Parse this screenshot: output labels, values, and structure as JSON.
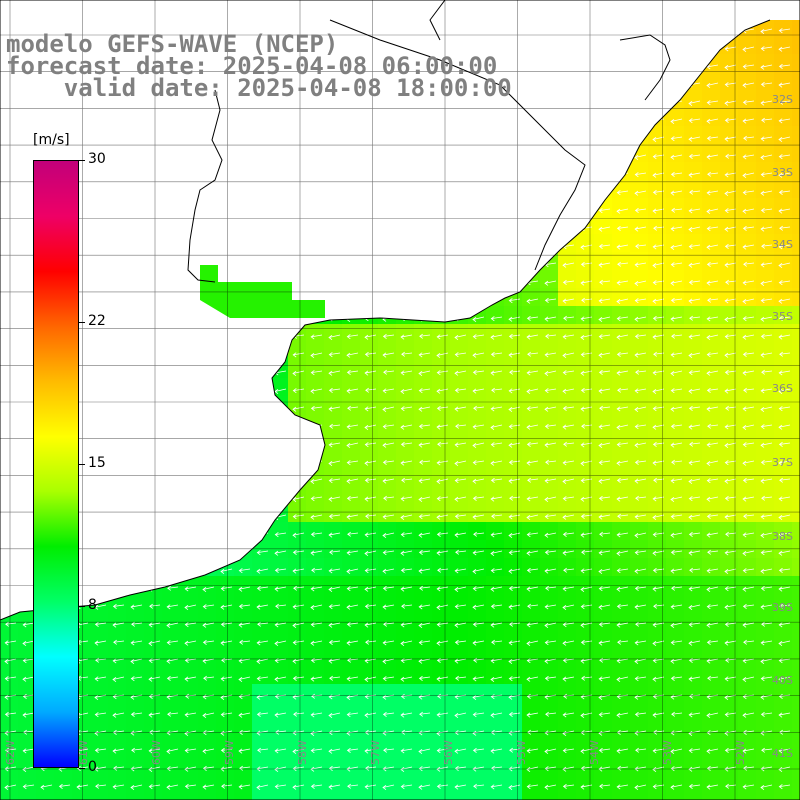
{
  "title": {
    "line1": "modelo GEFS-WAVE (NCEP)",
    "line2": "forecast date: 2025-04-08 06:00:00",
    "line3": "    valid date: 2025-04-08 18:00:00"
  },
  "legend": {
    "units": "[m/s]",
    "min": 0,
    "max": 30,
    "ticks": [
      {
        "value": 30,
        "label": "30"
      },
      {
        "value": 22,
        "label": "22"
      },
      {
        "value": 15,
        "label": "15"
      },
      {
        "value": 8,
        "label": "8"
      },
      {
        "value": 0,
        "label": "0"
      }
    ],
    "colors": [
      "#0000ff",
      "#00aaff",
      "#00ffff",
      "#00ff66",
      "#00ee00",
      "#aaff00",
      "#ffff00",
      "#ffbb00",
      "#ff6600",
      "#ff0000",
      "#ee0066",
      "#c2007a"
    ]
  },
  "map": {
    "land_color": "#ffffff",
    "grid_color": "#000000",
    "lat_labels": [
      "32S",
      "33S",
      "34S",
      "35S",
      "36S",
      "37S",
      "38S",
      "39S",
      "40S",
      "41S"
    ],
    "lon_labels": [
      "62W",
      "61W",
      "60W",
      "59W",
      "58W",
      "57W",
      "56W",
      "55W",
      "54W",
      "53W",
      "52W"
    ],
    "field": "wind speed (m/s) with direction arrows",
    "wind_direction": "from east / northeast"
  }
}
